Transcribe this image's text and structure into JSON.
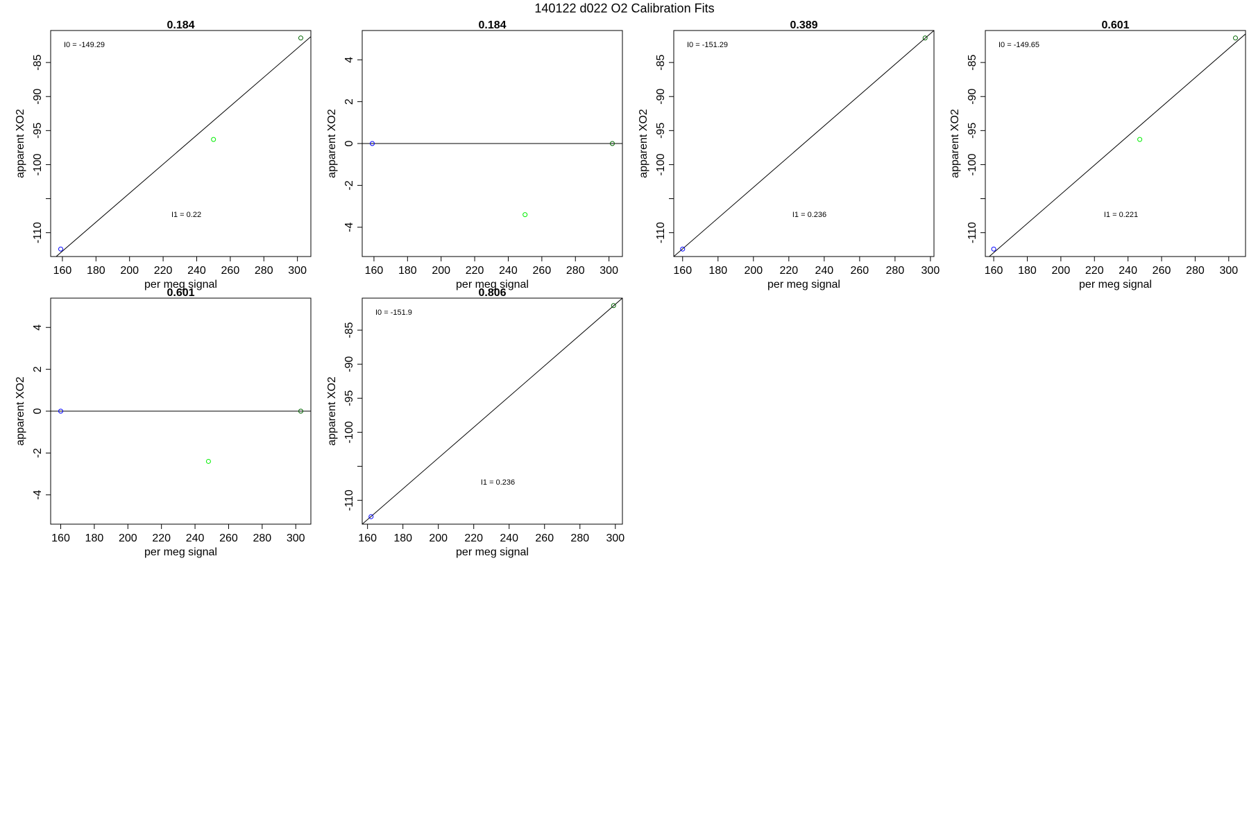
{
  "page_title": "140122   d022   O2 Calibration Fits",
  "colors": {
    "low_point": "#0000ff",
    "mid_point": "#00ee00",
    "high_point": "#006400",
    "fit_line": "#000000"
  },
  "chart_data": [
    {
      "type": "scatter",
      "title": "0.184",
      "xlabel": "per meg signal",
      "ylabel": "apparent XO2",
      "xlim": [
        153,
        308
      ],
      "ylim": [
        -113.5,
        -80.3
      ],
      "x_ticks": [
        160,
        180,
        200,
        220,
        240,
        260,
        280,
        300
      ],
      "y_ticks": [
        -110,
        -105,
        -100,
        -95,
        -90,
        -85
      ],
      "y_tick_labels": [
        "-110",
        "",
        "-100",
        "-95",
        "-90",
        "-85"
      ],
      "points": [
        {
          "x": 159,
          "y": -112.4,
          "role": "low"
        },
        {
          "x": 250,
          "y": -96.3,
          "role": "mid"
        },
        {
          "x": 302,
          "y": -81.4,
          "role": "high"
        }
      ],
      "fit_line": {
        "x1": 153,
        "y1": -114.2,
        "x2": 308,
        "y2": -81.2
      },
      "annotations": {
        "i0": "I0 =  -149.29",
        "i1": "I1 =  0.22"
      }
    },
    {
      "type": "scatter",
      "title": "0.184",
      "xlabel": "per meg signal",
      "ylabel": "apparent XO2",
      "xlim": [
        153,
        308
      ],
      "ylim": [
        -5.4,
        5.4
      ],
      "x_ticks": [
        160,
        180,
        200,
        220,
        240,
        260,
        280,
        300
      ],
      "y_ticks": [
        -4,
        -2,
        0,
        2,
        4
      ],
      "y_tick_labels": [
        "-4",
        "-2",
        "0",
        "2",
        "4"
      ],
      "points": [
        {
          "x": 159,
          "y": 0,
          "role": "low"
        },
        {
          "x": 250,
          "y": -3.4,
          "role": "mid"
        },
        {
          "x": 302,
          "y": 0,
          "role": "high"
        }
      ],
      "fit_line": {
        "x1": 153,
        "y1": 0,
        "x2": 308,
        "y2": 0
      },
      "annotations": {
        "i0": "",
        "i1": ""
      }
    },
    {
      "type": "scatter",
      "title": "0.389",
      "xlabel": "per meg signal",
      "ylabel": "apparent XO2",
      "xlim": [
        155,
        302
      ],
      "ylim": [
        -113.5,
        -80.3
      ],
      "x_ticks": [
        160,
        180,
        200,
        220,
        240,
        260,
        280,
        300
      ],
      "y_ticks": [
        -110,
        -105,
        -100,
        -95,
        -90,
        -85
      ],
      "y_tick_labels": [
        "-110",
        "",
        "-100",
        "-95",
        "-90",
        "-85"
      ],
      "points": [
        {
          "x": 160,
          "y": -112.4,
          "role": "low"
        },
        {
          "x": 297,
          "y": -81.4,
          "role": "high"
        }
      ],
      "fit_line": {
        "x1": 155,
        "y1": -113.5,
        "x2": 302,
        "y2": -80.3
      },
      "annotations": {
        "i0": "I0 =  -151.29",
        "i1": "I1 =  0.236"
      }
    },
    {
      "type": "scatter",
      "title": "0.601",
      "xlabel": "per meg signal",
      "ylabel": "apparent XO2",
      "xlim": [
        155,
        310
      ],
      "ylim": [
        -113.5,
        -80.3
      ],
      "x_ticks": [
        160,
        180,
        200,
        220,
        240,
        260,
        280,
        300
      ],
      "y_ticks": [
        -110,
        -105,
        -100,
        -95,
        -90,
        -85
      ],
      "y_tick_labels": [
        "-110",
        "",
        "-100",
        "-95",
        "-90",
        "-85"
      ],
      "points": [
        {
          "x": 160,
          "y": -112.4,
          "role": "low"
        },
        {
          "x": 247,
          "y": -96.3,
          "role": "mid"
        },
        {
          "x": 304,
          "y": -81.4,
          "role": "high"
        }
      ],
      "fit_line": {
        "x1": 155,
        "y1": -114.0,
        "x2": 310,
        "y2": -80.8
      },
      "annotations": {
        "i0": "I0 =  -149.65",
        "i1": "I1 =  0.221"
      }
    },
    {
      "type": "scatter",
      "title": "0.601",
      "xlabel": "per meg signal",
      "ylabel": "apparent XO2",
      "xlim": [
        154,
        309
      ],
      "ylim": [
        -5.4,
        5.4
      ],
      "x_ticks": [
        160,
        180,
        200,
        220,
        240,
        260,
        280,
        300
      ],
      "y_ticks": [
        -4,
        -2,
        0,
        2,
        4
      ],
      "y_tick_labels": [
        "-4",
        "-2",
        "0",
        "2",
        "4"
      ],
      "points": [
        {
          "x": 160,
          "y": 0,
          "role": "low"
        },
        {
          "x": 248,
          "y": -2.4,
          "role": "mid"
        },
        {
          "x": 303,
          "y": 0,
          "role": "high"
        }
      ],
      "fit_line": {
        "x1": 154,
        "y1": 0,
        "x2": 309,
        "y2": 0
      },
      "annotations": {
        "i0": "",
        "i1": ""
      }
    },
    {
      "type": "scatter",
      "title": "0.806",
      "xlabel": "per meg signal",
      "ylabel": "apparent XO2",
      "xlim": [
        157,
        304
      ],
      "ylim": [
        -113.5,
        -80.3
      ],
      "x_ticks": [
        160,
        180,
        200,
        220,
        240,
        260,
        280,
        300
      ],
      "y_ticks": [
        -110,
        -105,
        -100,
        -95,
        -90,
        -85
      ],
      "y_tick_labels": [
        "-110",
        "",
        "-100",
        "-95",
        "-90",
        "-85"
      ],
      "points": [
        {
          "x": 162,
          "y": -112.4,
          "role": "low"
        },
        {
          "x": 299,
          "y": -81.4,
          "role": "high"
        }
      ],
      "fit_line": {
        "x1": 157,
        "y1": -113.5,
        "x2": 304,
        "y2": -80.3
      },
      "annotations": {
        "i0": "I0 =  -151.9",
        "i1": "I1 =  0.236"
      }
    }
  ]
}
